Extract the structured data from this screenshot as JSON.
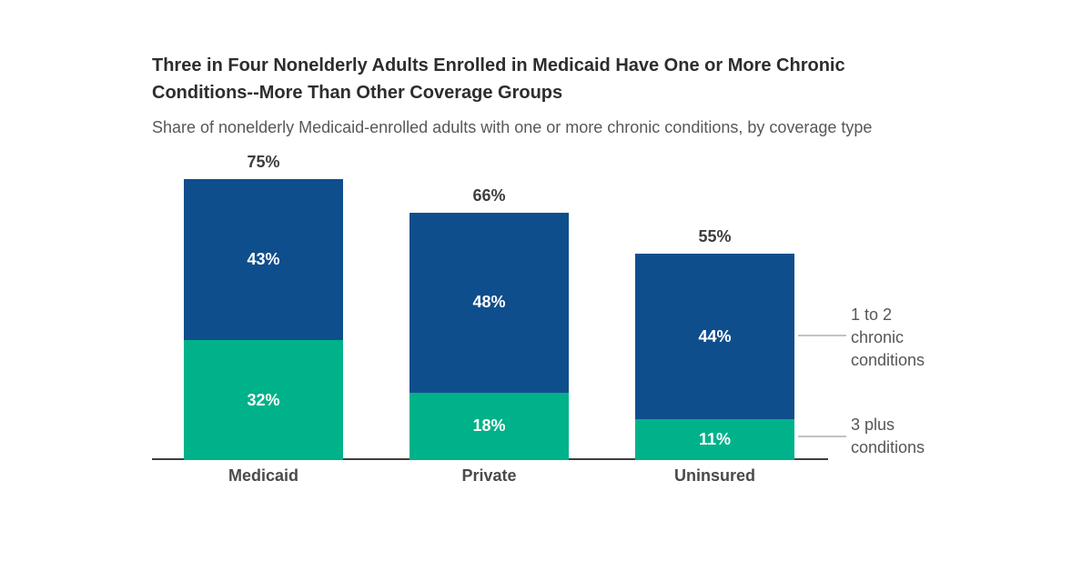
{
  "header": {
    "title": "Three in Four Nonelderly Adults Enrolled in Medicaid Have One or More Chronic\nConditions--More Than Other Coverage Groups",
    "subtitle": "Share of nonelderly Medicaid-enrolled adults with one or more chronic conditions, by coverage type"
  },
  "chart_data": {
    "type": "bar",
    "variant": "stacked-column",
    "categories": [
      "Medicaid",
      "Private",
      "Uninsured"
    ],
    "series": [
      {
        "name": "3 plus conditions",
        "color": "#00b289",
        "values": [
          32,
          18,
          11
        ]
      },
      {
        "name": "1 to 2 chronic conditions",
        "color": "#0f4e8c",
        "values": [
          43,
          48,
          44
        ]
      }
    ],
    "totals": [
      75,
      66,
      55
    ],
    "value_unit": "%",
    "ylim": [
      0,
      100
    ],
    "grid": false,
    "y_axis_visible": false,
    "x_axis_line": true,
    "legend_position": "right annotations",
    "annotations": [
      {
        "text": "1 to 2\nchronic\nconditions",
        "series": "1 to 2 chronic conditions"
      },
      {
        "text": "3 plus\nconditions",
        "series": "3 plus conditions"
      }
    ]
  },
  "style": {
    "background": "#ffffff",
    "title_color": "#2d2d2d",
    "subtitle_color": "#585858",
    "total_label_color": "#3d3d3d",
    "segment_label_color": "#ffffff",
    "category_label_color": "#4a4a4a",
    "annotation_text_color": "#565656",
    "axis_line_color": "#3f3f3f",
    "connector_color": "#c2c2c2"
  }
}
